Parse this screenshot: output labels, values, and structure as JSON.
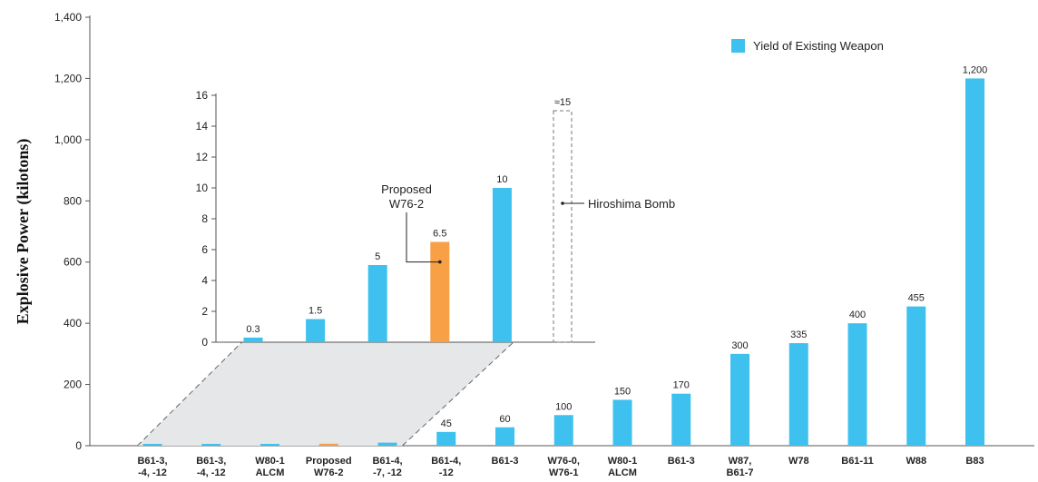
{
  "colors": {
    "existing": "#3ec1ee",
    "proposed": "#f7a046",
    "axis": "#555555",
    "panel": "#e6e7e8"
  },
  "chart_data": [
    {
      "type": "bar",
      "ylabel": "Explosive Power (kilotons)",
      "ylim": [
        0,
        1400
      ],
      "yticks": [
        "0",
        "200",
        "400",
        "600",
        "800",
        "1,000",
        "1,200",
        "1,400"
      ],
      "ytick_values": [
        0,
        200,
        400,
        600,
        800,
        1000,
        1200,
        1400
      ],
      "legend": {
        "label": "Yield of Existing Weapon",
        "position": "top-right"
      },
      "categories": [
        [
          "B61-3,",
          "-4, -12"
        ],
        [
          "B61-3,",
          "-4, -12"
        ],
        [
          "W80-1",
          "ALCM"
        ],
        [
          "Proposed",
          "W76-2"
        ],
        [
          "B61-4,",
          "-7, -12"
        ],
        [
          "B61-4,",
          "-12"
        ],
        [
          "B61-3"
        ],
        [
          "W76-0,",
          "W76-1"
        ],
        [
          "W80-1",
          "ALCM"
        ],
        [
          "B61-3"
        ],
        [
          "W87,",
          "B61-7"
        ],
        [
          "W78"
        ],
        [
          "B61-11"
        ],
        [
          "W88"
        ],
        [
          "B83"
        ]
      ],
      "values": [
        0.3,
        1.5,
        5,
        6.5,
        10,
        45,
        60,
        100,
        150,
        170,
        300,
        335,
        400,
        455,
        1200
      ],
      "value_labels": [
        "",
        "",
        "",
        "",
        "",
        "45",
        "60",
        "100",
        "150",
        "170",
        "300",
        "335",
        "400",
        "455",
        "1,200"
      ],
      "kinds": [
        "existing",
        "existing",
        "existing",
        "proposed",
        "existing",
        "existing",
        "existing",
        "existing",
        "existing",
        "existing",
        "existing",
        "existing",
        "existing",
        "existing",
        "existing"
      ]
    },
    {
      "type": "bar",
      "ylim": [
        0,
        16
      ],
      "yticks": [
        "0",
        "2",
        "4",
        "6",
        "8",
        "10",
        "12",
        "14",
        "16"
      ],
      "ytick_values": [
        0,
        2,
        4,
        6,
        8,
        10,
        12,
        14,
        16
      ],
      "values": [
        0.3,
        1.5,
        5,
        6.5,
        10
      ],
      "value_labels": [
        "0.3",
        "1.5",
        "5",
        "6.5",
        "10"
      ],
      "kinds": [
        "existing",
        "existing",
        "existing",
        "proposed",
        "existing"
      ],
      "reference": {
        "value": 15,
        "value_label": "≈15",
        "label": "Hiroshima Bomb"
      },
      "annotation": [
        "Proposed",
        "W76-2"
      ]
    }
  ]
}
